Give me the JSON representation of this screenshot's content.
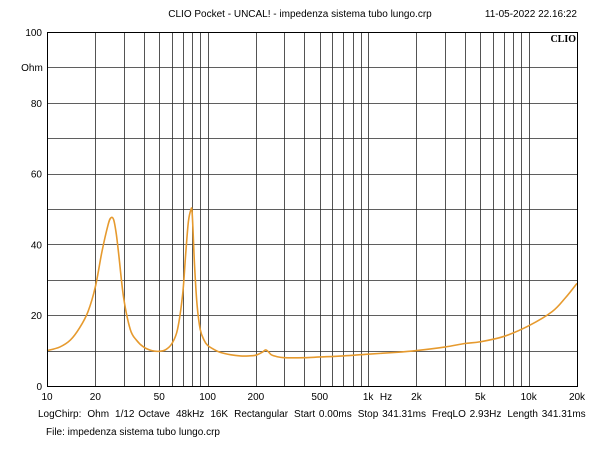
{
  "header": {
    "title": "CLIO Pocket - UNCAL! - impedenza sistema tubo lungo.crp",
    "timestamp": "11-05-2022 22.16:22",
    "logo": "CLIO"
  },
  "chart_data": {
    "type": "line",
    "title": "CLIO Pocket - UNCAL! - impedenza sistema tubo lungo.crp",
    "xlabel": "Hz",
    "ylabel": "Ohm",
    "x_scale": "log",
    "xlim": [
      10,
      20000
    ],
    "ylim": [
      0,
      100
    ],
    "grid": true,
    "x_ticks": [
      {
        "value": 10,
        "label": "10"
      },
      {
        "value": 20,
        "label": "20"
      },
      {
        "value": 50,
        "label": "50"
      },
      {
        "value": 100,
        "label": "100"
      },
      {
        "value": 200,
        "label": "200"
      },
      {
        "value": 500,
        "label": "500"
      },
      {
        "value": 1000,
        "label": "1k"
      },
      {
        "value": 2000,
        "label": "2k"
      },
      {
        "value": 5000,
        "label": "5k"
      },
      {
        "value": 10000,
        "label": "10k"
      },
      {
        "value": 20000,
        "label": "20k"
      }
    ],
    "y_ticks": [
      {
        "value": 100,
        "label": "100"
      },
      {
        "value": 80,
        "label": "80"
      },
      {
        "value": 60,
        "label": "60"
      },
      {
        "value": 40,
        "label": "40"
      },
      {
        "value": 20,
        "label": "20"
      },
      {
        "value": 0,
        "label": "0"
      }
    ],
    "series": [
      {
        "color": "#e69a2e",
        "x": [
          10,
          12,
          14,
          16,
          18,
          20,
          22,
          24,
          25,
          26,
          27,
          28,
          30,
          33,
          36,
          40,
          45,
          50,
          55,
          60,
          65,
          70,
          73,
          76,
          79,
          80,
          81,
          83,
          86,
          90,
          95,
          100,
          110,
          120,
          140,
          160,
          180,
          200,
          220,
          230,
          240,
          250,
          270,
          300,
          400,
          500,
          700,
          1000,
          1500,
          2000,
          3000,
          4000,
          5000,
          7000,
          10000,
          14000,
          17000,
          20000
        ],
        "y": [
          10,
          11,
          13,
          16.5,
          21,
          28,
          38,
          45.5,
          47.5,
          47,
          43,
          37,
          25,
          16,
          13,
          11,
          10,
          9.8,
          10.3,
          12,
          16,
          26,
          37,
          46.5,
          50,
          49.5,
          45,
          34,
          23,
          16,
          13,
          11.5,
          10.3,
          9.5,
          8.8,
          8.5,
          8.5,
          8.7,
          9.6,
          10.2,
          9.6,
          8.8,
          8.3,
          8,
          8,
          8.2,
          8.5,
          9,
          9.5,
          10,
          11,
          12,
          12.5,
          14,
          17,
          21,
          25,
          29
        ]
      }
    ]
  },
  "footer": {
    "params": [
      "LogChirp:",
      "Ohm",
      "1/12 Octave",
      "48kHz",
      "16K",
      "Rectangular",
      "Start 0.00ms",
      "Stop 341.31ms",
      "FreqLO 2.93Hz",
      "Length 341.31ms"
    ],
    "file": "File: impedenza sistema tubo lungo.crp"
  },
  "colors": {
    "trace": "#e69a2e",
    "grid": "#2a2a2a",
    "background": "#ffffff"
  }
}
